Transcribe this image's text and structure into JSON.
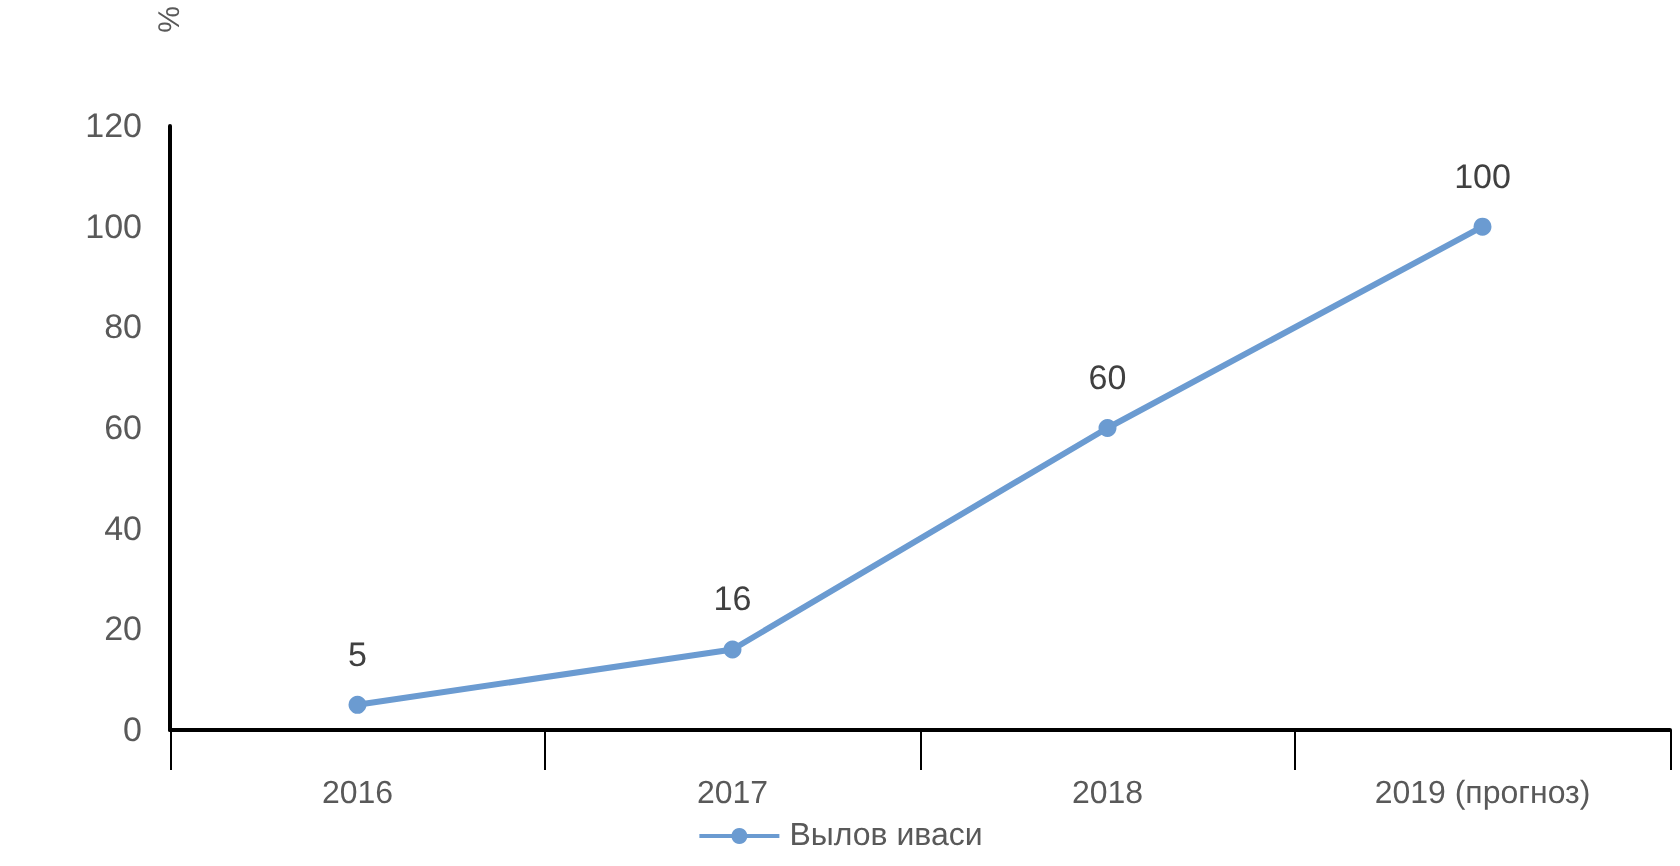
{
  "chart_data": {
    "type": "line",
    "ylabel": "%",
    "categories": [
      "2016",
      "2017",
      "2018",
      "2019 (прогноз)"
    ],
    "series": [
      {
        "name": "Вылов иваси",
        "color": "#6b9bd1",
        "values": [
          5,
          16,
          60,
          100
        ]
      }
    ],
    "ylim": [
      0,
      120
    ],
    "yticks": [
      0,
      20,
      40,
      60,
      80,
      100,
      120
    ],
    "grid": false,
    "legend": "bottom",
    "marker": "circle",
    "line_style": "solid",
    "data_labels": true
  }
}
